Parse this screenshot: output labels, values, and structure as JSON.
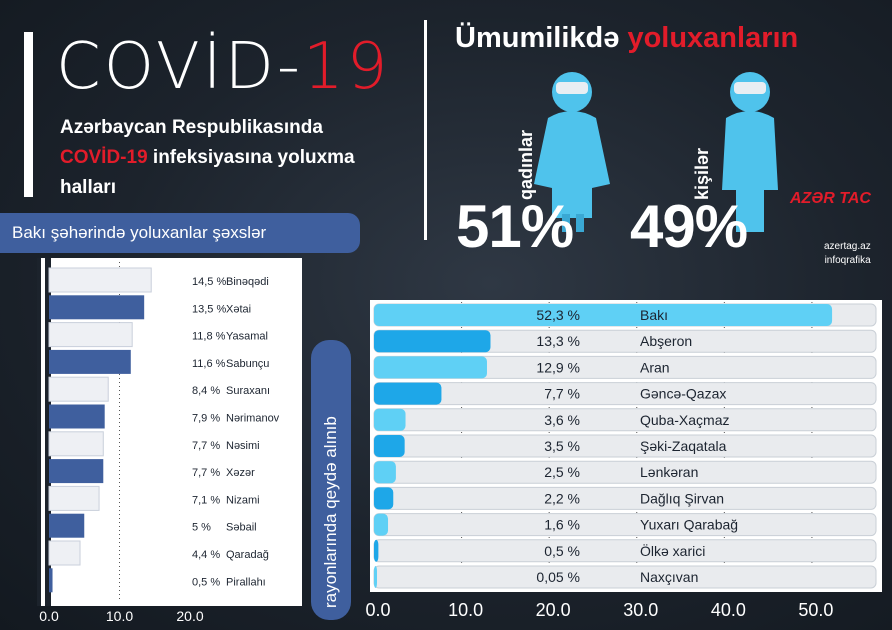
{
  "header": {
    "title_main": "COVİD-",
    "title_red": "19",
    "subtitle_line1": "Azərbaycan Respublikasında",
    "subtitle_red": "COVİD-19",
    "subtitle_line2_rest": " infeksiyasına yoluxma",
    "subtitle_line3": "halları"
  },
  "gender": {
    "title_white": "Ümumilikdə ",
    "title_red": "yoluxanların",
    "women_label": "qadınlar",
    "women_pct": "51%",
    "men_label": "kişilər",
    "men_pct": "49%",
    "figure_color": "#4fc3ec"
  },
  "logo": {
    "main": "AZƏR TAC",
    "site": "azertag.az",
    "type": "infoqrafika"
  },
  "banners": {
    "baki": "Bakı şəhərində yoluxanlar şəxslər",
    "regions": "rayonlarında qeydə alınıb"
  },
  "colors": {
    "red": "#e21c2a",
    "blue_bar": "#3f5f9e",
    "light_blue": "#5fd0f5",
    "bright_blue": "#1ea7e8"
  },
  "chart_data": [
    {
      "type": "bar",
      "orientation": "horizontal",
      "categories": [
        "Binəqədi",
        "Xətai",
        "Yasamal",
        "Sabunçu",
        "Suraxanı",
        "Nərimanov",
        "Nəsimi",
        "Xəzər",
        "Nizami",
        "Səbail",
        "Qaradağ",
        "Pirallahı"
      ],
      "value_labels": [
        "14,5 %",
        "13,5 %",
        "11,8 %",
        "11,6 %",
        "8,4 %",
        "7,9 %",
        "7,7 %",
        "7,7 %",
        "7,1 %",
        "5 %",
        "4,4 %",
        "0,5 %"
      ],
      "values": [
        14.5,
        13.5,
        11.8,
        11.6,
        8.4,
        7.9,
        7.7,
        7.7,
        7.1,
        5.0,
        4.4,
        0.5
      ],
      "xlim": [
        0,
        20
      ],
      "x_ticks": [
        "0.0",
        "10.0",
        "20.0"
      ]
    },
    {
      "type": "bar",
      "orientation": "horizontal",
      "categories": [
        "Bakı",
        "Abşeron",
        "Aran",
        "Gəncə-Qazax",
        "Quba-Xaçmaz",
        "Şəki-Zaqatala",
        "Lənkəran",
        "Dağlıq Şirvan",
        "Yuxarı Qarabağ",
        "Ölkə xarici",
        "Naxçıvan"
      ],
      "value_labels": [
        "52,3 %",
        "13,3 %",
        "12,9 %",
        "7,7 %",
        "3,6 %",
        "3,5 %",
        "2,5 %",
        "2,2 %",
        "1,6 %",
        "0,5 %",
        "0,05 %"
      ],
      "values": [
        52.3,
        13.3,
        12.9,
        7.7,
        3.6,
        3.5,
        2.5,
        2.2,
        1.6,
        0.5,
        0.05
      ],
      "xlim": [
        0,
        58
      ],
      "x_ticks": [
        "0.0",
        "10.0",
        "20.0",
        "30.0",
        "40.0",
        "50.0"
      ]
    }
  ]
}
